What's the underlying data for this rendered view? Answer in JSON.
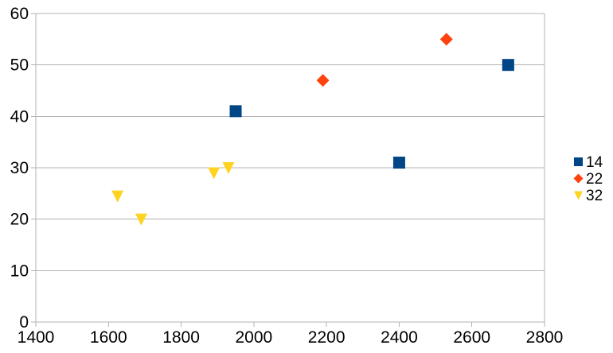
{
  "chart_data": {
    "type": "scatter",
    "title": "",
    "xlabel": "",
    "ylabel": "",
    "xlim": [
      1400,
      2800
    ],
    "ylim": [
      0,
      60
    ],
    "x_ticks": [
      1400,
      1600,
      1800,
      2000,
      2200,
      2400,
      2600,
      2800
    ],
    "y_ticks": [
      0,
      10,
      20,
      30,
      40,
      50,
      60
    ],
    "grid": "horizontal-only",
    "legend_position": "right-middle",
    "colors": {
      "background": "#ffffff",
      "gridline": "#b3b3b3",
      "axis": "#b3b3b3",
      "text": "#000000",
      "series_blue": "#004586",
      "series_red": "#ff420e",
      "series_yellow": "#ffd320"
    },
    "series": [
      {
        "name": "14",
        "marker": "square",
        "color": "#004586",
        "points": [
          [
            1950,
            41
          ],
          [
            2400,
            31
          ],
          [
            2700,
            50
          ]
        ]
      },
      {
        "name": "22",
        "marker": "diamond",
        "color": "#ff420e",
        "points": [
          [
            2190,
            47
          ],
          [
            2530,
            55
          ]
        ]
      },
      {
        "name": "32",
        "marker": "triangle-down",
        "color": "#ffd320",
        "points": [
          [
            1625,
            24.5
          ],
          [
            1690,
            20
          ],
          [
            1890,
            29
          ],
          [
            1930,
            30
          ]
        ]
      }
    ]
  }
}
